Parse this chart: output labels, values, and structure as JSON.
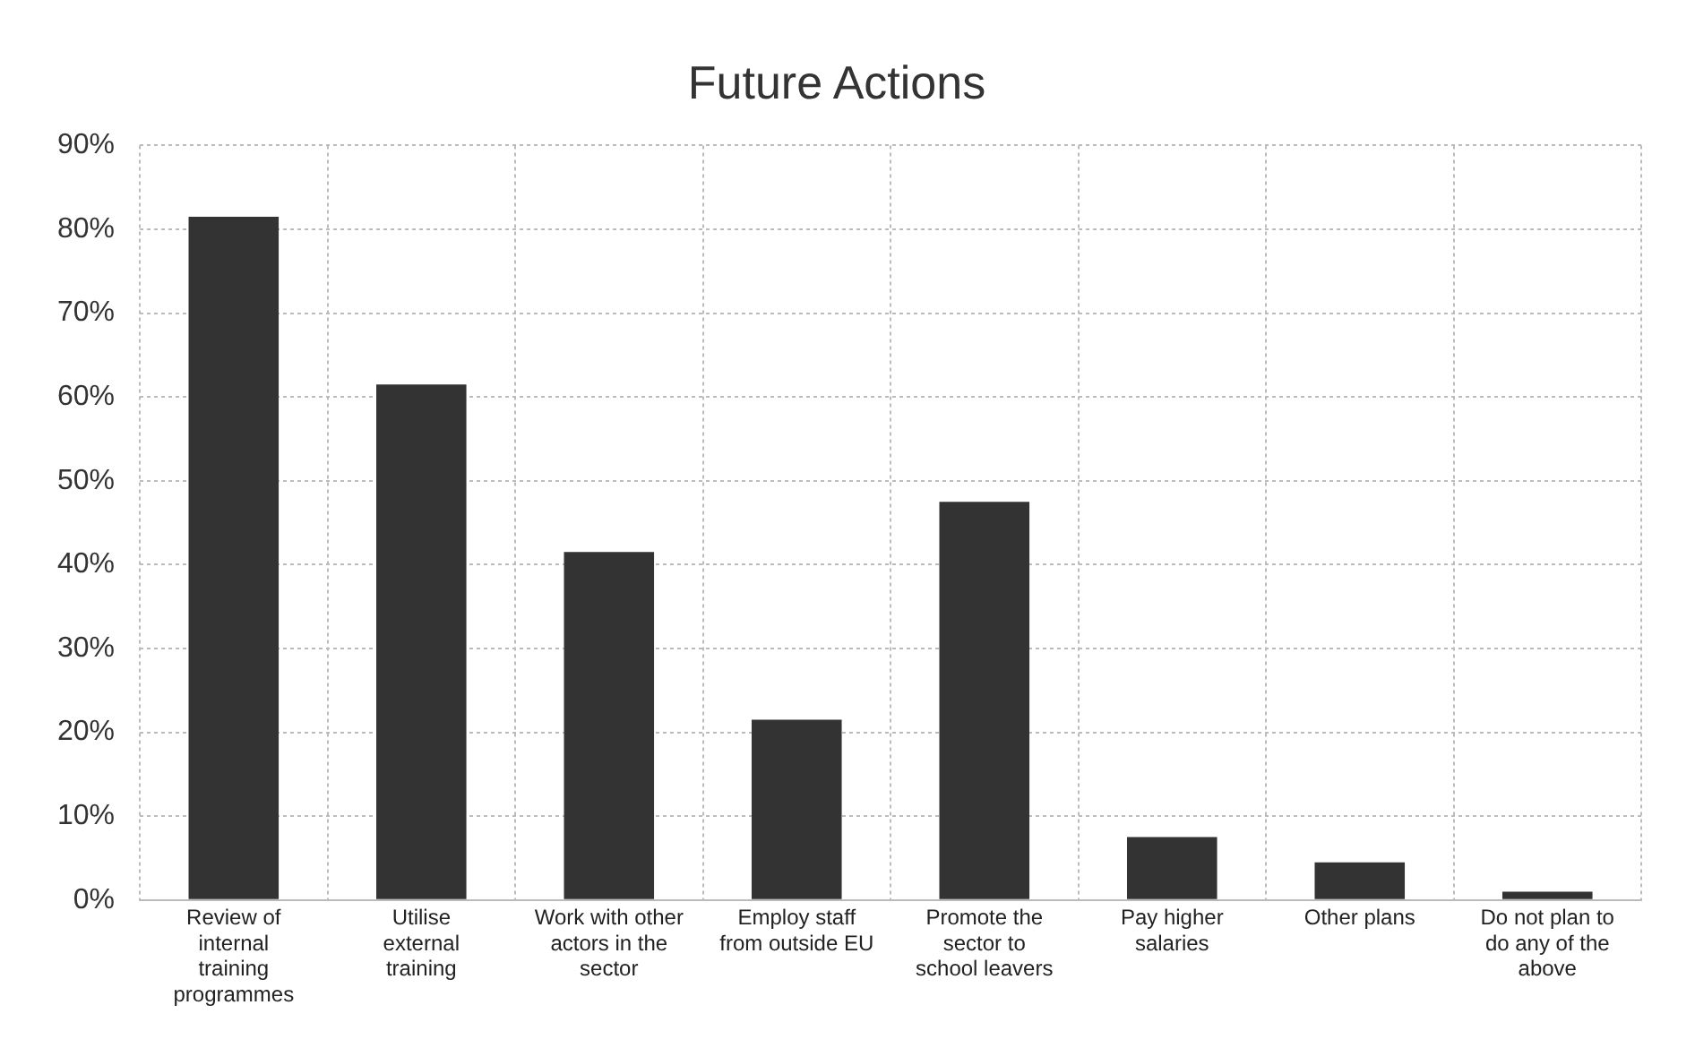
{
  "chart_data": {
    "type": "bar",
    "title": "Future Actions",
    "categories": [
      "Review of internal training programmes",
      "Utilise external training",
      "Work with other actors in the sector",
      "Employ staff from outside EU",
      "Promote the sector to school leavers",
      "Pay higher salaries",
      "Other plans",
      "Do not plan to do any of the above"
    ],
    "values": [
      81.5,
      61.5,
      41.5,
      21.5,
      47.5,
      7.5,
      4.5,
      1
    ],
    "color": "#333333",
    "ylim": [
      0,
      90
    ],
    "yticks": [
      {
        "value": 0,
        "label": "0%"
      },
      {
        "value": 10,
        "label": "10%"
      },
      {
        "value": 20,
        "label": "20%"
      },
      {
        "value": 30,
        "label": "30%"
      },
      {
        "value": 40,
        "label": "40%"
      },
      {
        "value": 50,
        "label": "50%"
      },
      {
        "value": 60,
        "label": "60%"
      },
      {
        "value": 70,
        "label": "70%"
      },
      {
        "value": 80,
        "label": "80%"
      },
      {
        "value": 90,
        "label": "90%"
      }
    ],
    "grid": true
  }
}
